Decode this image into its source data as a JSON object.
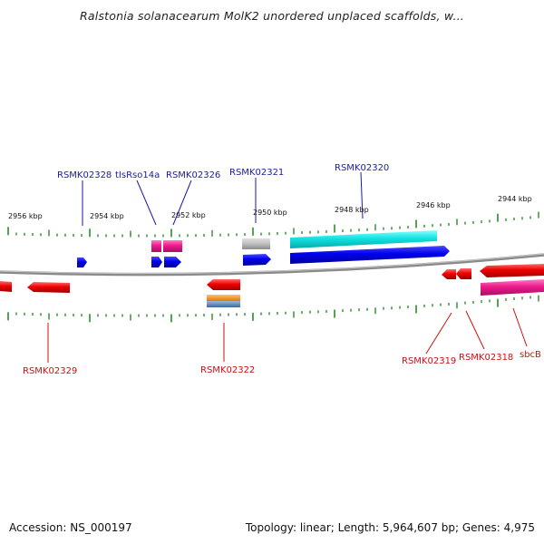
{
  "title": "Ralstonia solanacearum MolK2 unordered unplaced scaffolds, w...",
  "footer": {
    "accession": "Accession: NS_000197",
    "summary": "Topology: linear; Length: 5,964,607 bp; Genes: 4,975"
  },
  "colors": {
    "top_label": "#1a1aa8",
    "bottom_label": "#cc1111",
    "tick": "#2e8b2e",
    "backbone": "#8a8a8a"
  },
  "scale_labels": [
    "2956 kbp",
    "2954 kbp",
    "2952 kbp",
    "2950 kbp",
    "2948 kbp",
    "2946 kbp",
    "2944 kbp"
  ],
  "top_labels": [
    "RSMK02328",
    "tIsRso14a",
    "RSMK02326",
    "RSMK02321",
    "RSMK02320"
  ],
  "bottom_labels": [
    "RSMK02329",
    "RSMK02322",
    "RSMK02319",
    "RSMK02318",
    "sbcB"
  ]
}
